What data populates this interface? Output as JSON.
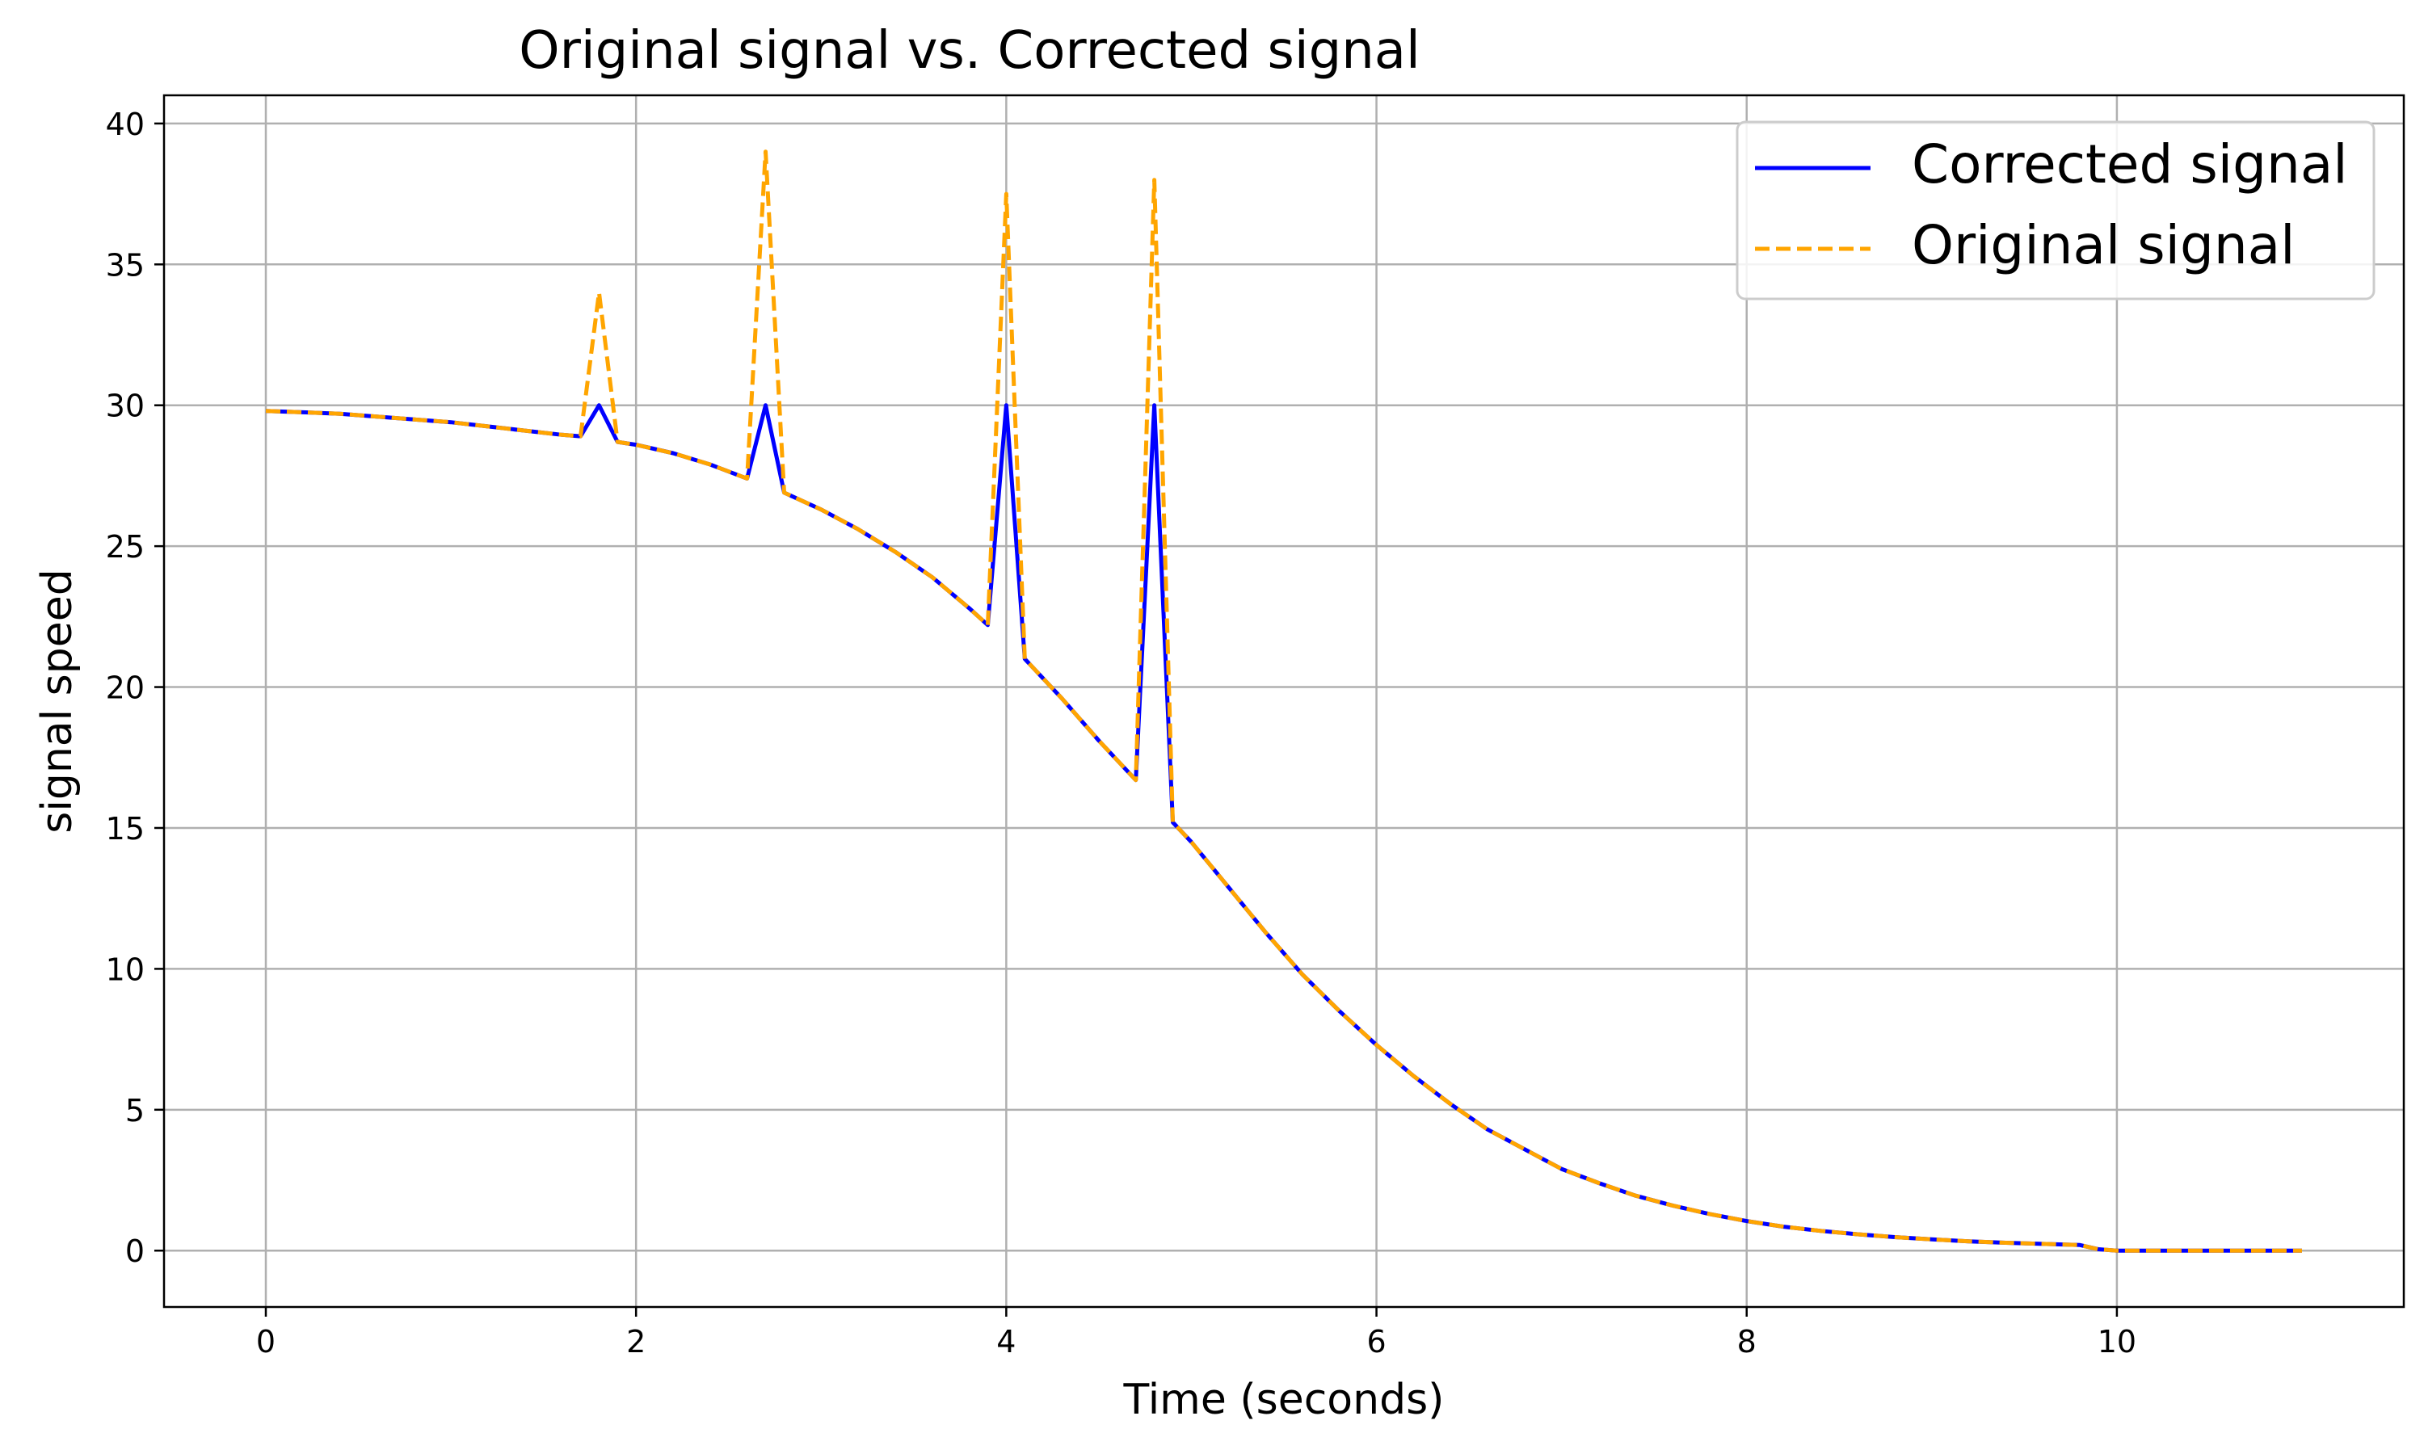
{
  "chart_data": {
    "type": "line",
    "title": "Original signal vs. Corrected signal",
    "xlabel": "Time (seconds)",
    "ylabel": "signal speed",
    "xlim": [
      -0.55,
      11.55
    ],
    "ylim": [
      -2,
      41
    ],
    "xticks": [
      0,
      2,
      4,
      6,
      8,
      10
    ],
    "yticks": [
      0,
      5,
      10,
      15,
      20,
      25,
      30,
      35,
      40
    ],
    "grid": true,
    "legend_position": "top-right",
    "series": [
      {
        "name": "Corrected signal",
        "color": "#0000ff",
        "style": "solid",
        "x": [
          0,
          0.2,
          0.4,
          0.6,
          0.8,
          1.0,
          1.2,
          1.4,
          1.6,
          1.7,
          1.8,
          1.9,
          2.0,
          2.2,
          2.4,
          2.6,
          2.7,
          2.8,
          3.0,
          3.2,
          3.4,
          3.6,
          3.8,
          3.9,
          4.0,
          4.1,
          4.3,
          4.5,
          4.7,
          4.8,
          4.9,
          5.0,
          5.2,
          5.4,
          5.6,
          5.8,
          6.0,
          6.2,
          6.4,
          6.6,
          6.8,
          7.0,
          7.2,
          7.4,
          7.6,
          7.8,
          8.0,
          8.2,
          8.4,
          8.6,
          8.8,
          9.0,
          9.2,
          9.4,
          9.6,
          9.8,
          9.9,
          10.0,
          10.2,
          10.4,
          10.6,
          10.8,
          11.0
        ],
        "y": [
          29.8,
          29.75,
          29.7,
          29.6,
          29.5,
          29.4,
          29.25,
          29.1,
          28.95,
          28.9,
          30.0,
          28.7,
          28.6,
          28.3,
          27.9,
          27.4,
          30.0,
          26.9,
          26.3,
          25.6,
          24.8,
          23.9,
          22.8,
          22.2,
          30.0,
          21.0,
          19.6,
          18.1,
          16.7,
          30.0,
          15.2,
          14.5,
          12.9,
          11.3,
          9.8,
          8.5,
          7.3,
          6.2,
          5.2,
          4.3,
          3.6,
          2.9,
          2.4,
          1.95,
          1.6,
          1.3,
          1.05,
          0.85,
          0.7,
          0.58,
          0.48,
          0.4,
          0.33,
          0.28,
          0.24,
          0.2,
          0.05,
          0.0,
          0.0,
          0.0,
          0.0,
          0.0,
          0.0
        ]
      },
      {
        "name": "Original signal",
        "color": "#ffa500",
        "style": "dashed",
        "x": [
          0,
          0.2,
          0.4,
          0.6,
          0.8,
          1.0,
          1.2,
          1.4,
          1.6,
          1.7,
          1.8,
          1.9,
          2.0,
          2.2,
          2.4,
          2.6,
          2.7,
          2.8,
          3.0,
          3.2,
          3.4,
          3.6,
          3.8,
          3.9,
          4.0,
          4.1,
          4.3,
          4.5,
          4.7,
          4.8,
          4.9,
          5.0,
          5.2,
          5.4,
          5.6,
          5.8,
          6.0,
          6.2,
          6.4,
          6.6,
          6.8,
          7.0,
          7.2,
          7.4,
          7.6,
          7.8,
          8.0,
          8.2,
          8.4,
          8.6,
          8.8,
          9.0,
          9.2,
          9.4,
          9.6,
          9.8,
          9.9,
          10.0,
          10.2,
          10.4,
          10.6,
          10.8,
          11.0
        ],
        "y": [
          29.8,
          29.75,
          29.7,
          29.6,
          29.5,
          29.4,
          29.25,
          29.1,
          28.95,
          28.9,
          34.0,
          28.7,
          28.6,
          28.3,
          27.9,
          27.4,
          39.0,
          26.9,
          26.3,
          25.6,
          24.8,
          23.9,
          22.8,
          22.2,
          37.5,
          21.0,
          19.6,
          18.1,
          16.7,
          38.0,
          15.2,
          14.5,
          12.9,
          11.3,
          9.8,
          8.5,
          7.3,
          6.2,
          5.2,
          4.3,
          3.6,
          2.9,
          2.4,
          1.95,
          1.6,
          1.3,
          1.05,
          0.85,
          0.7,
          0.58,
          0.48,
          0.4,
          0.33,
          0.28,
          0.24,
          0.2,
          0.05,
          0.0,
          0.0,
          0.0,
          0.0,
          0.0,
          0.0
        ]
      }
    ]
  }
}
